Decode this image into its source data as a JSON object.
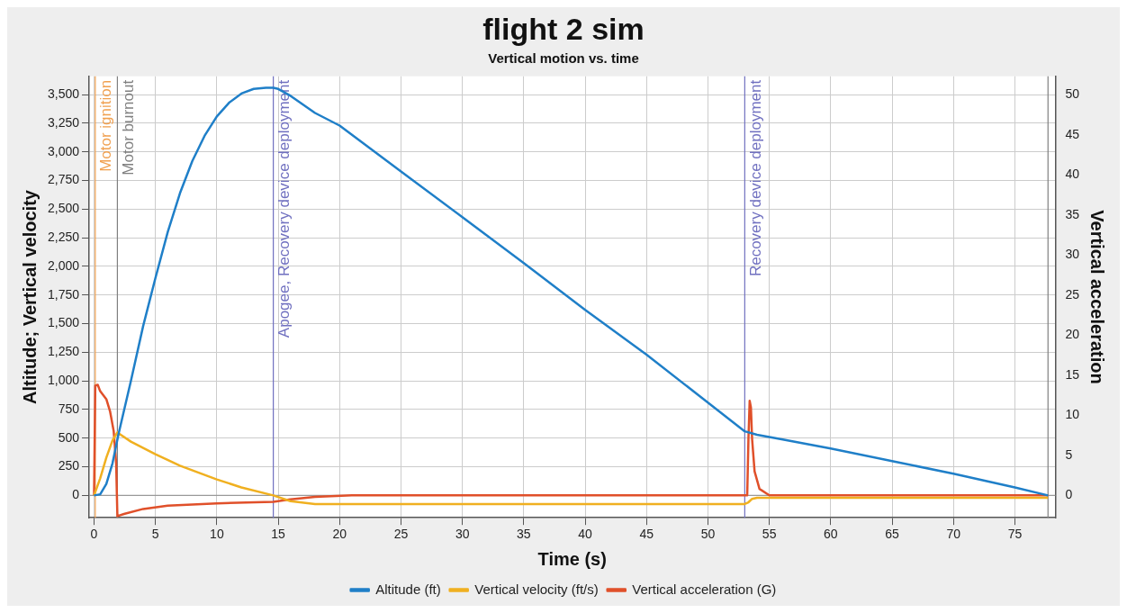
{
  "chart_data": {
    "type": "line",
    "title": "flight 2 sim",
    "subtitle": "Vertical motion vs. time",
    "xlabel": "Time (s)",
    "ylabel": "Altitude; Vertical velocity",
    "y2label": "Vertical acceleration",
    "xlim": [
      -0.4,
      78.3
    ],
    "xticks": [
      0,
      5,
      10,
      15,
      20,
      25,
      30,
      35,
      40,
      45,
      50,
      55,
      60,
      65,
      70,
      75
    ],
    "ylim": [
      -195,
      3660
    ],
    "yticks": [
      0,
      250,
      500,
      750,
      {
        "value": 1000,
        "label": "1,000"
      },
      {
        "value": 1250,
        "label": "1,250"
      },
      {
        "value": 1500,
        "label": "1,500"
      },
      {
        "value": 1750,
        "label": "1,750"
      },
      {
        "value": 2000,
        "label": "2,000"
      },
      {
        "value": 2250,
        "label": "2,250"
      },
      {
        "value": 2500,
        "label": "2,500"
      },
      {
        "value": 2750,
        "label": "2,750"
      },
      {
        "value": 3000,
        "label": "3,000"
      },
      {
        "value": 3250,
        "label": "3,250"
      },
      {
        "value": 3500,
        "label": "3,500"
      }
    ],
    "y2lim": [
      -2.8,
      52.3
    ],
    "y2ticks": [
      0,
      5,
      10,
      15,
      20,
      25,
      30,
      35,
      40,
      45,
      50
    ],
    "grid": true,
    "legend": "bottom",
    "marker": "none",
    "line_style": "solid",
    "series": [
      {
        "name": "Altitude (ft)",
        "color": "#1f7fc8",
        "x": [
          0,
          0.5,
          1,
          1.5,
          2,
          3,
          4,
          5,
          6,
          7,
          8,
          9,
          10,
          11,
          12,
          13,
          14,
          14.6,
          15,
          16,
          18,
          20,
          25,
          30,
          35,
          40,
          45,
          50,
          53,
          54,
          56,
          60,
          65,
          70,
          75,
          77.7
        ],
        "values": [
          0,
          10,
          100,
          280,
          540,
          1000,
          1480,
          1900,
          2300,
          2640,
          2920,
          3140,
          3310,
          3430,
          3510,
          3550,
          3560,
          3560,
          3550,
          3490,
          3340,
          3230,
          2830,
          2430,
          2030,
          1620,
          1230,
          810,
          560,
          530,
          490,
          410,
          300,
          190,
          70,
          0
        ]
      },
      {
        "name": "Vertical velocity (ft/s)",
        "color": "#f0b020",
        "x": [
          0,
          0.5,
          1,
          1.5,
          1.9,
          3,
          5,
          7,
          10,
          12,
          14.6,
          16,
          18,
          20,
          53,
          53.3,
          53.6,
          54,
          77.7
        ],
        "values": [
          0,
          150,
          330,
          480,
          550,
          470,
          360,
          260,
          140,
          70,
          0,
          -50,
          -75,
          -75,
          -75,
          -60,
          -30,
          -20,
          -20
        ]
      },
      {
        "name": "Vertical acceleration (G)",
        "color": "#e0502a",
        "axis": "y2",
        "x": [
          0,
          0.1,
          0.3,
          0.5,
          1,
          1.3,
          1.6,
          1.8,
          1.9,
          2.5,
          4,
          6,
          10,
          14.6,
          16,
          18,
          21,
          53.2,
          53.3,
          53.4,
          53.5,
          53.6,
          53.8,
          54.2,
          55,
          77.7
        ],
        "values": [
          0,
          13.7,
          13.8,
          13,
          12,
          10.5,
          8,
          4,
          -2.6,
          -2.3,
          -1.7,
          -1.3,
          -1,
          -0.8,
          -0.5,
          -0.2,
          0,
          0,
          7,
          11.8,
          11,
          7,
          3,
          0.8,
          0,
          0
        ]
      }
    ],
    "ref_lines": [
      {
        "axis": "y",
        "value": 0,
        "color": "#999999"
      },
      {
        "axis": "x",
        "value": 0.1,
        "label": "Motor ignition",
        "color": "#f0a050"
      },
      {
        "axis": "x",
        "value": 1.9,
        "label": "Motor burnout",
        "color": "#808080"
      },
      {
        "axis": "x",
        "value": 14.6,
        "label": "Apogee, Recovery device deployment",
        "color": "#7070c0"
      },
      {
        "axis": "x",
        "value": 53,
        "label": "Recovery device deployment",
        "color": "#7070c0"
      },
      {
        "axis": "x",
        "value": 77.7,
        "color": "#808080"
      }
    ]
  }
}
